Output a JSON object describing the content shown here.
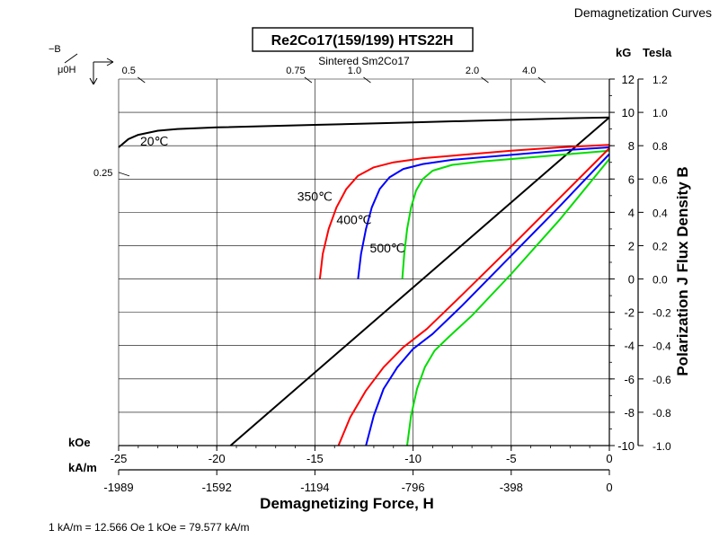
{
  "page_title": "Demagnetization Curves",
  "chart_data": {
    "type": "line",
    "title": "Re2Co17(159/199) HTS22H",
    "subtitle": "Sintered Sm2Co17",
    "xlabel": "Demagnetizing Force, H",
    "ylabel": "Polarization J Flux Density B",
    "x_unit_top": "kOe",
    "x_unit_bottom": "kA/m",
    "y_unit_left": "kG",
    "y_unit_right": "Tesla",
    "slope_label_numerator": "−B",
    "slope_label_denominator": "μ0H",
    "footnote": "1 kA/m = 12.566 Oe 1 kOe = 79.577 kA/m",
    "xlim": [
      -25,
      0
    ],
    "ylim": [
      -10,
      12
    ],
    "x_ticks_koe": [
      {
        "v": -25,
        "label": "-25"
      },
      {
        "v": -20,
        "label": "-20"
      },
      {
        "v": -15,
        "label": "-15"
      },
      {
        "v": -10,
        "label": "-10"
      },
      {
        "v": -5,
        "label": "-5"
      },
      {
        "v": 0,
        "label": "0"
      }
    ],
    "x_ticks_kam": [
      {
        "v": -25,
        "label": "-1989"
      },
      {
        "v": -20,
        "label": "-1592"
      },
      {
        "v": -15,
        "label": "-1194"
      },
      {
        "v": -10,
        "label": "-796"
      },
      {
        "v": -5,
        "label": "-398"
      },
      {
        "v": 0,
        "label": "0"
      }
    ],
    "y_ticks_kg": [
      {
        "v": 12,
        "label": "12"
      },
      {
        "v": 10,
        "label": "10"
      },
      {
        "v": 8,
        "label": "8"
      },
      {
        "v": 6,
        "label": "6"
      },
      {
        "v": 4,
        "label": "4"
      },
      {
        "v": 2,
        "label": "2"
      },
      {
        "v": 0,
        "label": "0"
      },
      {
        "v": -2,
        "label": "-2"
      },
      {
        "v": -4,
        "label": "-4"
      },
      {
        "v": -6,
        "label": "-6"
      },
      {
        "v": -8,
        "label": "-8"
      },
      {
        "v": -10,
        "label": "-10"
      }
    ],
    "y_ticks_tesla": [
      {
        "v": 12,
        "label": "1.2"
      },
      {
        "v": 10,
        "label": "1.0"
      },
      {
        "v": 8,
        "label": "0.8"
      },
      {
        "v": 6,
        "label": "0.6"
      },
      {
        "v": 4,
        "label": "0.4"
      },
      {
        "v": 2,
        "label": "0.2"
      },
      {
        "v": 0,
        "label": "0.0"
      },
      {
        "v": -2,
        "label": "-0.2"
      },
      {
        "v": -4,
        "label": "-0.4"
      },
      {
        "v": -6,
        "label": "-0.6"
      },
      {
        "v": -8,
        "label": "-0.8"
      },
      {
        "v": -10,
        "label": "-1.0"
      }
    ],
    "permeance_ticks": [
      {
        "label": "0.5",
        "x": -24.3,
        "y": 12
      },
      {
        "label": "0.75",
        "x": -15.8,
        "y": 12
      },
      {
        "label": "1.0",
        "x": -12.8,
        "y": 12
      },
      {
        "label": "2.0",
        "x": -6.8,
        "y": 12
      },
      {
        "label": "4.0",
        "x": -3.9,
        "y": 12
      },
      {
        "label": "0.25",
        "x": -25,
        "y": 6.4
      }
    ],
    "series": [
      {
        "name": "20℃",
        "color": "#000000",
        "label_at": [
          -23.9,
          8.0
        ],
        "x": [
          -25,
          -24.5,
          -24,
          -23,
          -22,
          -20,
          -15,
          -10,
          -5,
          -2,
          0
        ],
        "y": [
          7.9,
          8.4,
          8.65,
          8.9,
          9.0,
          9.1,
          9.25,
          9.4,
          9.55,
          9.65,
          9.7
        ]
      },
      {
        "name": "",
        "color": "#000000",
        "x": [
          -19.3,
          0
        ],
        "y": [
          -10,
          9.7
        ]
      },
      {
        "name": "350℃",
        "color": "#ff0000",
        "label_at": [
          -15.9,
          4.7
        ],
        "x": [
          -14.75,
          -14.6,
          -14.3,
          -13.9,
          -13.4,
          -12.8,
          -12.0,
          -11.0,
          -9.5,
          -7.5,
          -5,
          -2.5,
          0
        ],
        "y": [
          0,
          1.5,
          3.0,
          4.3,
          5.4,
          6.2,
          6.7,
          7.0,
          7.25,
          7.45,
          7.7,
          7.9,
          8.05
        ]
      },
      {
        "name": "400℃",
        "color": "#0000ff",
        "label_at": [
          -13.9,
          3.3
        ],
        "x": [
          -12.8,
          -12.65,
          -12.4,
          -12.1,
          -11.7,
          -11.2,
          -10.5,
          -9.5,
          -8.0,
          -6,
          -4,
          -2,
          0
        ],
        "y": [
          0,
          1.5,
          3.0,
          4.3,
          5.4,
          6.1,
          6.6,
          6.9,
          7.15,
          7.35,
          7.55,
          7.75,
          7.9
        ]
      },
      {
        "name": "500℃",
        "color": "#00dd00",
        "label_at": [
          -12.2,
          1.6
        ],
        "x": [
          -10.55,
          -10.45,
          -10.3,
          -10.1,
          -9.85,
          -9.5,
          -9.0,
          -8.0,
          -6.5,
          -4.5,
          -2.5,
          -1,
          0
        ],
        "y": [
          0,
          1.5,
          3.0,
          4.3,
          5.3,
          6.0,
          6.5,
          6.85,
          7.05,
          7.25,
          7.45,
          7.6,
          7.7
        ]
      },
      {
        "name": "",
        "color": "#ff0000",
        "x": [
          -13.8,
          -13.2,
          -12.4,
          -11.5,
          -10.5,
          -9.3,
          -7.5,
          -5,
          -2.5,
          0
        ],
        "y": [
          -10,
          -8.3,
          -6.7,
          -5.3,
          -4.1,
          -3.0,
          -0.95,
          1.95,
          4.9,
          7.85
        ]
      },
      {
        "name": "",
        "color": "#0000ff",
        "x": [
          -12.4,
          -12.0,
          -11.5,
          -10.8,
          -10.0,
          -9.0,
          -7.5,
          -5,
          -2.5,
          0
        ],
        "y": [
          -10,
          -8.2,
          -6.6,
          -5.3,
          -4.2,
          -3.3,
          -1.6,
          1.4,
          4.4,
          7.5
        ]
      },
      {
        "name": "",
        "color": "#00dd00",
        "x": [
          -10.3,
          -10.1,
          -9.8,
          -9.4,
          -8.9,
          -8.2,
          -7,
          -5,
          -2.5,
          0
        ],
        "y": [
          -10,
          -8.2,
          -6.6,
          -5.3,
          -4.3,
          -3.5,
          -2.2,
          0.3,
          3.6,
          7.2
        ]
      }
    ]
  }
}
